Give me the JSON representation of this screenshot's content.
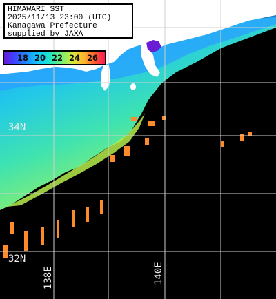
{
  "info": {
    "line1": "HIMAWARI SST",
    "line2": "2025/11/13 23:00 (UTC)",
    "line3": "Kanagawa Prefecture",
    "line4": "supplied by JAXA"
  },
  "legend": {
    "ticks": [
      "18",
      "20",
      "22",
      "24",
      "26"
    ],
    "colors": [
      "#6a1bd4",
      "#1f8bff",
      "#1ee6c8",
      "#d8ea3a",
      "#ff5a2e"
    ]
  },
  "grid_labels": {
    "lat_34": "34N",
    "lat_32": "32N",
    "lon_138": "138E",
    "lon_140": "140E"
  },
  "colors": {
    "land": "#ffffff",
    "no_data": "#000000",
    "grid": "#cfcfcf"
  }
}
